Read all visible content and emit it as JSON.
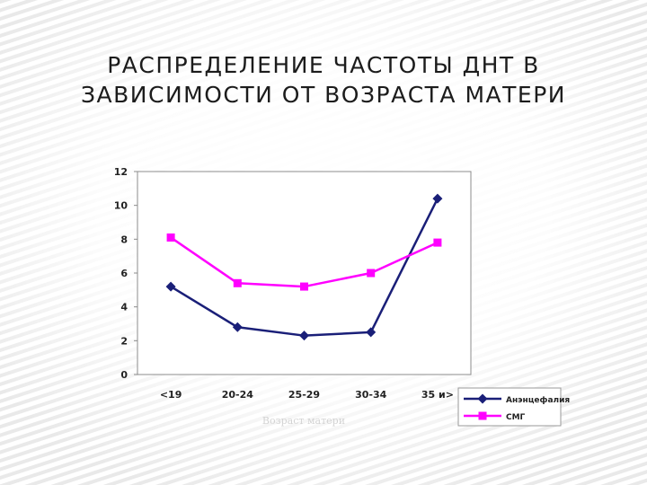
{
  "slide": {
    "title_line1": "РАСПРЕДЕЛЕНИЕ ЧАСТОТЫ ДНТ В",
    "title_line2": "ЗАВИСИМОСТИ ОТ ВОЗРАСТА МАТЕРИ"
  },
  "chart_data": {
    "type": "line",
    "categories": [
      "<19",
      "20-24",
      "25-29",
      "30-34",
      "35 и>"
    ],
    "series": [
      {
        "name": "Анэнцефалия",
        "values": [
          5.2,
          2.8,
          2.3,
          2.5,
          10.4
        ],
        "color": "#1a1f78",
        "marker": "diamond"
      },
      {
        "name": "СМГ",
        "values": [
          8.1,
          5.4,
          5.2,
          6.0,
          7.8
        ],
        "color": "#ff00ff",
        "marker": "square"
      }
    ],
    "xlabel": "Возраст матери",
    "ylabel": "",
    "ylim": [
      0,
      12
    ],
    "yticks": [
      "0",
      "2",
      "4",
      "6",
      "8",
      "10",
      "12"
    ],
    "grid": false,
    "legend": "bottom-right"
  }
}
